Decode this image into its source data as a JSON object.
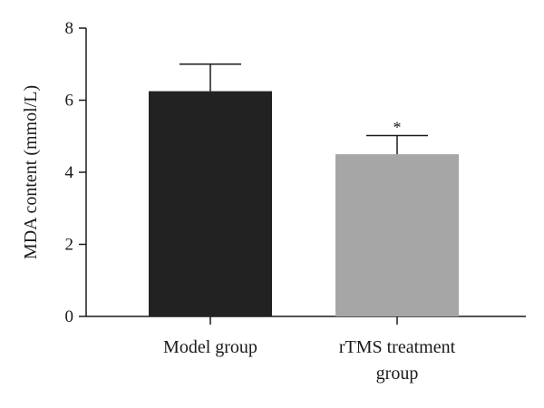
{
  "chart_data": {
    "type": "bar",
    "title": "",
    "xlabel": "",
    "ylabel": "MDA content (mmol/L)",
    "ylim": [
      0,
      8
    ],
    "yticks": [
      0,
      2,
      4,
      6,
      8
    ],
    "grid": false,
    "categories": [
      {
        "lines": [
          "Model group"
        ]
      },
      {
        "lines": [
          "rTMS treatment",
          "group"
        ]
      }
    ],
    "values": [
      6.25,
      4.5
    ],
    "errors": [
      0.75,
      0.52
    ],
    "significance": [
      "",
      "*"
    ],
    "colors": [
      "#222222",
      "#a6a6a6"
    ]
  }
}
